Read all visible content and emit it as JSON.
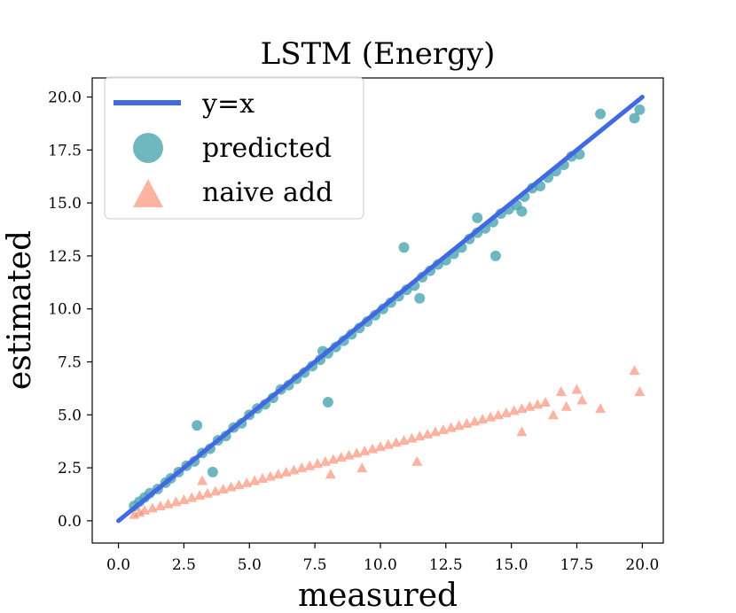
{
  "chart_data": {
    "type": "scatter",
    "title": "LSTM (Energy)",
    "xlabel": "measured",
    "ylabel": "estimated",
    "xlim": [
      -1.0,
      20.8
    ],
    "ylim": [
      -1.05,
      20.9
    ],
    "xticks": [
      0.0,
      2.5,
      5.0,
      7.5,
      10.0,
      12.5,
      15.0,
      17.5,
      20.0
    ],
    "yticks": [
      0.0,
      2.5,
      5.0,
      7.5,
      10.0,
      12.5,
      15.0,
      17.5,
      20.0
    ],
    "xtick_labels": [
      "0.0",
      "2.5",
      "5.0",
      "7.5",
      "10.0",
      "12.5",
      "15.0",
      "17.5",
      "20.0"
    ],
    "ytick_labels": [
      "0.0",
      "2.5",
      "5.0",
      "7.5",
      "10.0",
      "12.5",
      "15.0",
      "17.5",
      "20.0"
    ],
    "grid": false,
    "legend_position": "top-left",
    "series": [
      {
        "name": "y=x",
        "kind": "line",
        "color": "#4169e1",
        "x": [
          0.0,
          20.0
        ],
        "y": [
          0.0,
          20.0
        ]
      },
      {
        "name": "predicted",
        "kind": "scatter",
        "marker": "circle",
        "color": "#4aa5b0",
        "x": [
          0.6,
          0.8,
          1.0,
          1.2,
          1.5,
          1.8,
          2.0,
          2.3,
          2.6,
          2.9,
          3.2,
          3.5,
          3.8,
          4.1,
          4.4,
          4.7,
          5.0,
          5.3,
          5.6,
          5.9,
          6.2,
          6.5,
          6.8,
          7.1,
          7.4,
          7.7,
          8.0,
          8.3,
          8.6,
          8.9,
          9.2,
          9.5,
          9.8,
          10.1,
          10.4,
          10.7,
          11.0,
          11.3,
          11.6,
          11.9,
          12.2,
          12.5,
          12.8,
          13.1,
          13.4,
          13.7,
          14.0,
          14.3,
          14.6,
          14.9,
          15.2,
          15.5,
          15.8,
          16.1,
          16.4,
          16.7,
          17.0,
          17.3,
          17.6,
          18.4,
          19.7,
          19.9,
          3.0,
          8.0,
          7.8,
          3.6,
          14.4,
          11.5,
          10.9,
          13.7,
          15.4
        ],
        "y": [
          0.7,
          0.9,
          1.1,
          1.3,
          1.5,
          1.8,
          2.0,
          2.3,
          2.6,
          2.8,
          3.2,
          3.4,
          3.8,
          4.0,
          4.4,
          4.6,
          5.0,
          5.3,
          5.5,
          5.8,
          6.2,
          6.4,
          6.7,
          7.0,
          7.3,
          7.6,
          7.9,
          8.2,
          8.5,
          8.8,
          9.1,
          9.4,
          9.7,
          10.0,
          10.3,
          10.6,
          10.9,
          11.1,
          11.5,
          11.8,
          12.1,
          12.3,
          12.6,
          12.9,
          13.3,
          13.6,
          13.8,
          14.1,
          14.5,
          14.7,
          14.9,
          15.3,
          15.7,
          15.8,
          16.2,
          16.5,
          16.8,
          17.2,
          17.3,
          19.2,
          19.0,
          19.4,
          4.5,
          5.6,
          8.0,
          2.3,
          12.5,
          10.5,
          12.9,
          14.3,
          14.6
        ]
      },
      {
        "name": "naive add",
        "kind": "scatter",
        "marker": "triangle",
        "color": "#fa8064",
        "x": [
          0.6,
          0.8,
          1.0,
          1.3,
          1.6,
          1.9,
          2.2,
          2.5,
          2.8,
          3.1,
          3.4,
          3.7,
          4.0,
          4.3,
          4.6,
          4.9,
          5.2,
          5.5,
          5.8,
          6.1,
          6.4,
          6.7,
          7.0,
          7.3,
          7.6,
          7.9,
          8.2,
          8.5,
          8.8,
          9.1,
          9.4,
          9.7,
          10.0,
          10.3,
          10.6,
          10.9,
          11.2,
          11.5,
          11.8,
          12.1,
          12.4,
          12.7,
          13.0,
          13.3,
          13.6,
          13.9,
          14.2,
          14.5,
          14.8,
          15.1,
          15.4,
          15.7,
          16.0,
          16.3,
          16.9,
          17.1,
          17.5,
          17.7,
          18.4,
          19.7,
          19.9,
          3.2,
          11.4,
          8.1,
          15.4,
          16.6,
          9.3
        ],
        "y": [
          0.3,
          0.4,
          0.5,
          0.6,
          0.7,
          0.8,
          0.9,
          1.0,
          1.1,
          1.2,
          1.3,
          1.4,
          1.5,
          1.6,
          1.7,
          1.8,
          1.9,
          2.0,
          2.1,
          2.2,
          2.3,
          2.4,
          2.5,
          2.6,
          2.7,
          2.8,
          2.9,
          3.0,
          3.1,
          3.2,
          3.3,
          3.4,
          3.5,
          3.6,
          3.7,
          3.8,
          3.9,
          4.0,
          4.1,
          4.2,
          4.3,
          4.4,
          4.5,
          4.6,
          4.7,
          4.8,
          4.9,
          5.0,
          5.1,
          5.2,
          5.3,
          5.4,
          5.5,
          5.6,
          6.1,
          5.4,
          6.2,
          5.7,
          5.3,
          7.1,
          6.1,
          1.9,
          2.8,
          2.2,
          4.2,
          5.0,
          2.5
        ]
      }
    ]
  }
}
